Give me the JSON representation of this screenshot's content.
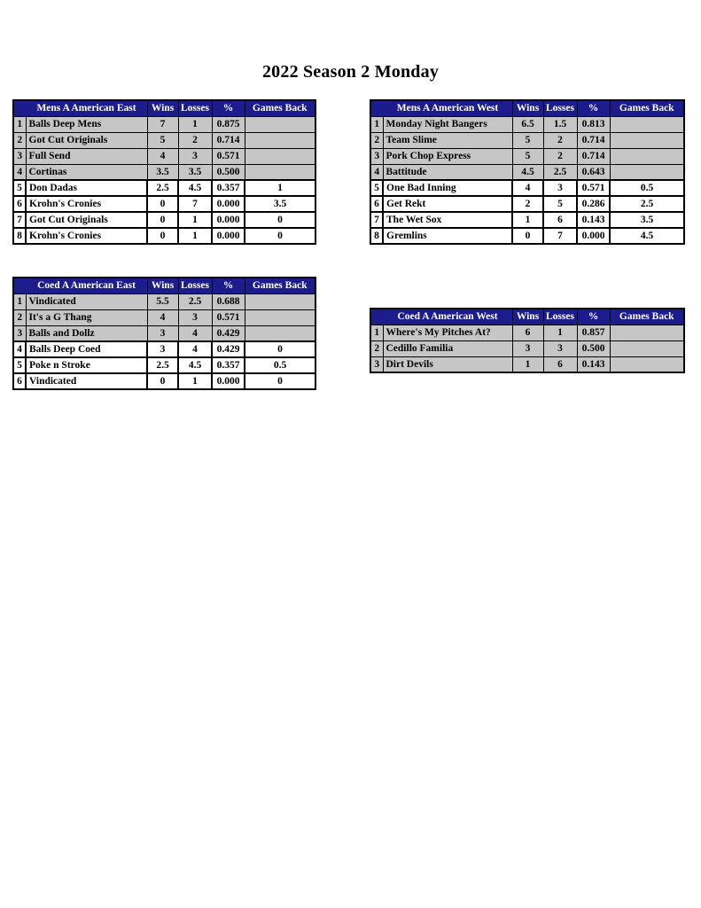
{
  "page": {
    "title": "2022 Season 2 Monday"
  },
  "columns": {
    "rank": "",
    "wins": "Wins",
    "losses": "Losses",
    "pct": "%",
    "games_back": "Games Back"
  },
  "colors": {
    "header_bg": "#1c1c8c",
    "header_text": "#ffffff",
    "shaded_row_bg": "#c6c6c6",
    "plain_row_bg": "#ffffff",
    "border": "#000000"
  },
  "tables": [
    {
      "name": "Mens A American East",
      "rows": [
        {
          "rank": "1",
          "team": "Balls Deep Mens",
          "wins": "7",
          "losses": "1",
          "pct": "0.875",
          "gb": "",
          "shaded": true
        },
        {
          "rank": "2",
          "team": "Got Cut Originals",
          "wins": "5",
          "losses": "2",
          "pct": "0.714",
          "gb": "",
          "shaded": true
        },
        {
          "rank": "3",
          "team": "Full Send",
          "wins": "4",
          "losses": "3",
          "pct": "0.571",
          "gb": "",
          "shaded": true
        },
        {
          "rank": "4",
          "team": "Cortinas",
          "wins": "3.5",
          "losses": "3.5",
          "pct": "0.500",
          "gb": "",
          "shaded": true
        },
        {
          "rank": "5",
          "team": "Don Dadas",
          "wins": "2.5",
          "losses": "4.5",
          "pct": "0.357",
          "gb": "1",
          "shaded": false
        },
        {
          "rank": "6",
          "team": "Krohn's Cronies",
          "wins": "0",
          "losses": "7",
          "pct": "0.000",
          "gb": "3.5",
          "shaded": false
        },
        {
          "rank": "7",
          "team": "Got Cut Originals",
          "wins": "0",
          "losses": "1",
          "pct": "0.000",
          "gb": "0",
          "shaded": false
        },
        {
          "rank": "8",
          "team": "Krohn's Cronies",
          "wins": "0",
          "losses": "1",
          "pct": "0.000",
          "gb": "0",
          "shaded": false
        }
      ]
    },
    {
      "name": "Mens A American West",
      "rows": [
        {
          "rank": "1",
          "team": "Monday Night Bangers",
          "wins": "6.5",
          "losses": "1.5",
          "pct": "0.813",
          "gb": "",
          "shaded": true
        },
        {
          "rank": "2",
          "team": "Team Slime",
          "wins": "5",
          "losses": "2",
          "pct": "0.714",
          "gb": "",
          "shaded": true
        },
        {
          "rank": "3",
          "team": "Pork Chop Express",
          "wins": "5",
          "losses": "2",
          "pct": "0.714",
          "gb": "",
          "shaded": true
        },
        {
          "rank": "4",
          "team": "Battitude",
          "wins": "4.5",
          "losses": "2.5",
          "pct": "0.643",
          "gb": "",
          "shaded": true
        },
        {
          "rank": "5",
          "team": "One Bad Inning",
          "wins": "4",
          "losses": "3",
          "pct": "0.571",
          "gb": "0.5",
          "shaded": false
        },
        {
          "rank": "6",
          "team": "Get Rekt",
          "wins": "2",
          "losses": "5",
          "pct": "0.286",
          "gb": "2.5",
          "shaded": false
        },
        {
          "rank": "7",
          "team": "The Wet Sox",
          "wins": "1",
          "losses": "6",
          "pct": "0.143",
          "gb": "3.5",
          "shaded": false
        },
        {
          "rank": "8",
          "team": "Gremlins",
          "wins": "0",
          "losses": "7",
          "pct": "0.000",
          "gb": "4.5",
          "shaded": false
        }
      ]
    },
    {
      "name": "Coed A American East",
      "rows": [
        {
          "rank": "1",
          "team": "Vindicated",
          "wins": "5.5",
          "losses": "2.5",
          "pct": "0.688",
          "gb": "",
          "shaded": true
        },
        {
          "rank": "2",
          "team": "It's a G Thang",
          "wins": "4",
          "losses": "3",
          "pct": "0.571",
          "gb": "",
          "shaded": true
        },
        {
          "rank": "3",
          "team": "Balls and Dollz",
          "wins": "3",
          "losses": "4",
          "pct": "0.429",
          "gb": "",
          "shaded": true
        },
        {
          "rank": "4",
          "team": "Balls Deep Coed",
          "wins": "3",
          "losses": "4",
          "pct": "0.429",
          "gb": "0",
          "shaded": false
        },
        {
          "rank": "5",
          "team": "Poke n Stroke",
          "wins": "2.5",
          "losses": "4.5",
          "pct": "0.357",
          "gb": "0.5",
          "shaded": false
        },
        {
          "rank": "6",
          "team": "Vindicated",
          "wins": "0",
          "losses": "1",
          "pct": "0.000",
          "gb": "0",
          "shaded": false
        }
      ]
    },
    {
      "name": "Coed A American West",
      "rows": [
        {
          "rank": "1",
          "team": "Where's My Pitches At?",
          "wins": "6",
          "losses": "1",
          "pct": "0.857",
          "gb": "",
          "shaded": true
        },
        {
          "rank": "2",
          "team": "Cedillo Familia",
          "wins": "3",
          "losses": "3",
          "pct": "0.500",
          "gb": "",
          "shaded": true
        },
        {
          "rank": "3",
          "team": "Dirt Devils",
          "wins": "1",
          "losses": "6",
          "pct": "0.143",
          "gb": "",
          "shaded": true
        }
      ]
    }
  ]
}
